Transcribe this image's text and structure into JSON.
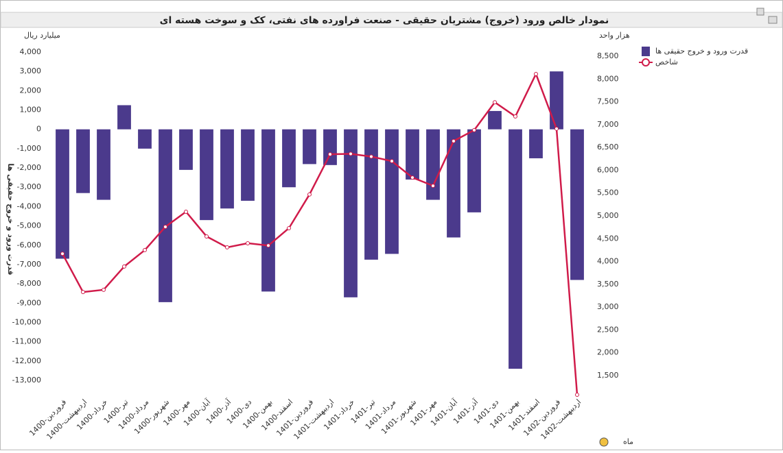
{
  "chart_data": {
    "type": "bar_line",
    "title": "نمودار خالص ورود (خروج) مشتریان حقیقی - صنعت فراورده های نفتی، کک و سوخت هسته ای",
    "y_unit": "میلیارد ریال",
    "y2_unit": "هزار واحد",
    "y_label": "قدرت ورود و خروج حقیقی ها",
    "x_label": "ماه",
    "categories": [
      "1400-فروردین",
      "1400-اردیبهشت",
      "1400-خرداد",
      "1400-تیر",
      "1400-مرداد",
      "1400-شهریور",
      "1400-مهر",
      "1400-آبان",
      "1400-آذر",
      "1400-دی",
      "1400-بهمن",
      "1400-اسفند",
      "1401-فروردین",
      "1401-اردیبهشت",
      "1401-خرداد",
      "1401-تیر",
      "1401-مرداد",
      "1401-شهریور",
      "1401-مهر",
      "1401-آبان",
      "1401-آذر",
      "1401-دی",
      "1401-بهمن",
      "1401-اسفند",
      "1402-فروردین",
      "1402-اردیبهشت"
    ],
    "series": [
      {
        "name": "قدرت ورود و خروج حقیقی ها",
        "type": "bar",
        "color": "#4b3a8c",
        "values": [
          -6700,
          -3300,
          -3650,
          1250,
          -1000,
          -8950,
          -2100,
          -4700,
          -4100,
          -3700,
          -8400,
          -3000,
          -1800,
          -1850,
          -8700,
          -6750,
          -6450,
          -2600,
          -3650,
          -5600,
          -4300,
          950,
          -12400,
          -1500,
          3000,
          -7800
        ]
      },
      {
        "name": "شاخص",
        "type": "line",
        "axis": "y2",
        "color": "#d01b4a",
        "values": [
          4170,
          3330,
          3380,
          3890,
          4250,
          4760,
          5090,
          4550,
          4310,
          4400,
          4350,
          4730,
          5470,
          6350,
          6360,
          6300,
          6200,
          5840,
          5660,
          6640,
          6880,
          7490,
          7180,
          8110,
          6910,
          1080
        ]
      }
    ],
    "ylim": [
      -13000,
      4000
    ],
    "yticks": [
      {
        "value": 4000,
        "label": "4,000"
      },
      {
        "value": 3000,
        "label": "3,000"
      },
      {
        "value": 2000,
        "label": "2,000"
      },
      {
        "value": 1000,
        "label": "1,000"
      },
      0,
      {
        "value": -1000,
        "label": "-1,000"
      },
      {
        "value": -2000,
        "label": "-2,000"
      },
      {
        "value": -3000,
        "label": "-3,000"
      },
      {
        "value": -4000,
        "label": "-4,000"
      },
      {
        "value": -5000,
        "label": "-5,000"
      },
      {
        "value": -6000,
        "label": "-6,000"
      },
      {
        "value": -7000,
        "label": "-7,000"
      },
      {
        "value": -8000,
        "label": "-8,000"
      },
      {
        "value": -9000,
        "label": "-9,000"
      },
      {
        "value": -10000,
        "label": "-10,000"
      },
      {
        "value": -11000,
        "label": "-11,000"
      },
      {
        "value": -12000,
        "label": "-12,000"
      },
      {
        "value": -13000,
        "label": "-13,000"
      }
    ],
    "y2lim": [
      1500,
      8500
    ],
    "y2ticks": [
      {
        "value": 8500,
        "label": "8,500"
      },
      {
        "value": 8000,
        "label": "8,000"
      },
      {
        "value": 7500,
        "label": "7,500"
      },
      {
        "value": 7000,
        "label": "7,000"
      },
      {
        "value": 6500,
        "label": "6,500"
      },
      {
        "value": 6000,
        "label": "6,000"
      },
      {
        "value": 5500,
        "label": "5,500"
      },
      {
        "value": 5000,
        "label": "5,000"
      },
      {
        "value": 4500,
        "label": "4,500"
      },
      {
        "value": 4000,
        "label": "4,000"
      },
      {
        "value": 3500,
        "label": "3,500"
      },
      {
        "value": 3000,
        "label": "3,000"
      },
      {
        "value": 2500,
        "label": "2,500"
      },
      {
        "value": 2000,
        "label": "2,000"
      },
      {
        "value": 1500,
        "label": "1,500"
      }
    ],
    "grid": false
  }
}
